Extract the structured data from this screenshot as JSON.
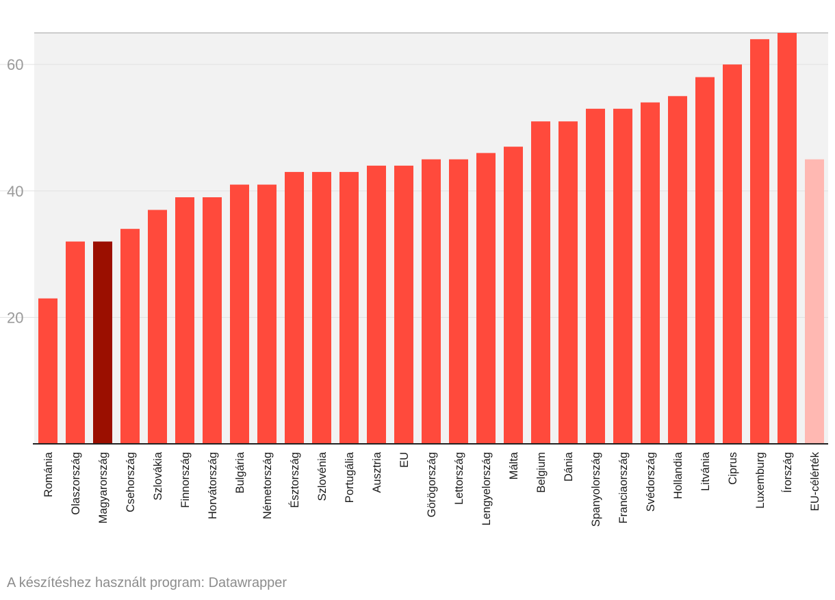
{
  "chart_data": {
    "type": "bar",
    "title": "",
    "xlabel": "",
    "ylabel": "",
    "ylim": [
      0,
      65
    ],
    "yticks": [
      20,
      40,
      60
    ],
    "grid": true,
    "categories": [
      "Románia",
      "Olaszország",
      "Magyarország",
      "Csehország",
      "Szlovákia",
      "Finnország",
      "Horvátország",
      "Bulgária",
      "Németország",
      "Észtország",
      "Szlovénia",
      "Portugália",
      "Ausztria",
      "EU",
      "Görögország",
      "Lettország",
      "Lengyelország",
      "Málta",
      "Belgium",
      "Dánia",
      "Spanyolország",
      "Franciaország",
      "Svédország",
      "Hollandia",
      "Litvánia",
      "Ciprus",
      "Luxemburg",
      "Írország",
      "EU-célérték"
    ],
    "values": [
      23,
      32,
      32,
      34,
      37,
      39,
      39,
      41,
      41,
      43,
      43,
      43,
      44,
      44,
      45,
      45,
      46,
      47,
      51,
      51,
      53,
      53,
      54,
      55,
      58,
      60,
      64,
      65,
      45
    ],
    "colors": {
      "default": "#ff4a3c",
      "highlight": "#9b0f00",
      "target": "#ffb8b2",
      "plot_background": "#f2f2f2",
      "gridline": "#e1e1e1",
      "baseline": "#222222"
    },
    "highlight_category": "Magyarország",
    "target_category": "EU-célérték"
  },
  "footer": {
    "credit": "A készítéshez használt program: Datawrapper"
  }
}
